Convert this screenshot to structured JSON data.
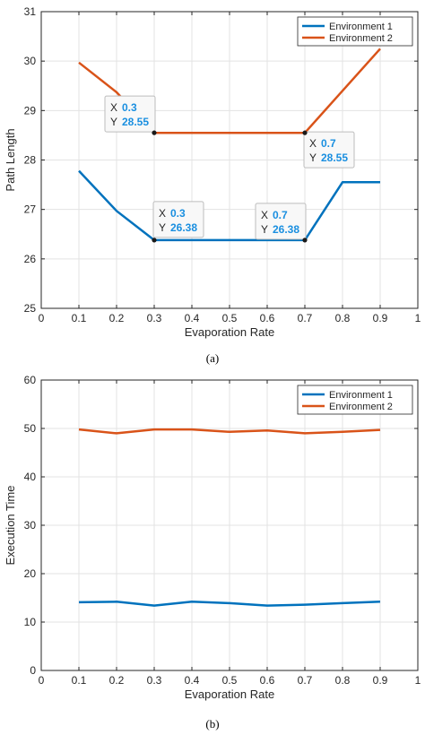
{
  "captions": [
    "(a)",
    "(b)"
  ],
  "chart_data": [
    {
      "type": "line",
      "xlabel": "Evaporation Rate",
      "ylabel": "Path Length",
      "xlim": [
        0,
        1
      ],
      "ylim": [
        25,
        31
      ],
      "xticks": [
        "0",
        "0.1",
        "0.2",
        "0.3",
        "0.4",
        "0.5",
        "0.6",
        "0.7",
        "0.8",
        "0.9",
        "1"
      ],
      "yticks": [
        "25",
        "26",
        "27",
        "28",
        "29",
        "30",
        "31"
      ],
      "grid": true,
      "legend_position": "top-right",
      "x": [
        0.1,
        0.2,
        0.3,
        0.4,
        0.5,
        0.6,
        0.7,
        0.8,
        0.9
      ],
      "series": [
        {
          "name": "Environment 1",
          "color": "#0072BD",
          "values": [
            27.78,
            26.97,
            26.38,
            26.38,
            26.38,
            26.38,
            26.38,
            27.55,
            27.55
          ]
        },
        {
          "name": "Environment 2",
          "color": "#D95319",
          "values": [
            29.97,
            29.37,
            28.55,
            28.55,
            28.55,
            28.55,
            28.55,
            29.4,
            30.25
          ]
        }
      ],
      "datatips": [
        {
          "x": 0.3,
          "y": 28.55,
          "x_label": "X",
          "y_label": "Y",
          "x_text": "0.3",
          "y_text": "28.55",
          "placement": "upper-left"
        },
        {
          "x": 0.7,
          "y": 28.55,
          "x_label": "X",
          "y_label": "Y",
          "x_text": "0.7",
          "y_text": "28.55",
          "placement": "lower-right"
        },
        {
          "x": 0.3,
          "y": 26.38,
          "x_label": "X",
          "y_label": "Y",
          "x_text": "0.3",
          "y_text": "26.38",
          "placement": "upper-right"
        },
        {
          "x": 0.7,
          "y": 26.38,
          "x_label": "X",
          "y_label": "Y",
          "x_text": "0.7",
          "y_text": "26.38",
          "placement": "upper-left"
        }
      ]
    },
    {
      "type": "line",
      "xlabel": "Evaporation Rate",
      "ylabel": "Execution Time",
      "xlim": [
        0,
        1
      ],
      "ylim": [
        0,
        60
      ],
      "xticks": [
        "0",
        "0.1",
        "0.2",
        "0.3",
        "0.4",
        "0.5",
        "0.6",
        "0.7",
        "0.8",
        "0.9",
        "1"
      ],
      "yticks": [
        "0",
        "10",
        "20",
        "30",
        "40",
        "50",
        "60"
      ],
      "grid": true,
      "legend_position": "top-right",
      "x": [
        0.1,
        0.2,
        0.3,
        0.4,
        0.5,
        0.6,
        0.7,
        0.8,
        0.9
      ],
      "series": [
        {
          "name": "Environment 1",
          "color": "#0072BD",
          "values": [
            14.1,
            14.2,
            13.4,
            14.2,
            13.9,
            13.4,
            13.6,
            13.9,
            14.2
          ]
        },
        {
          "name": "Environment 2",
          "color": "#D95319",
          "values": [
            49.8,
            49.0,
            49.8,
            49.8,
            49.3,
            49.6,
            49.0,
            49.3,
            49.7
          ]
        }
      ]
    }
  ]
}
